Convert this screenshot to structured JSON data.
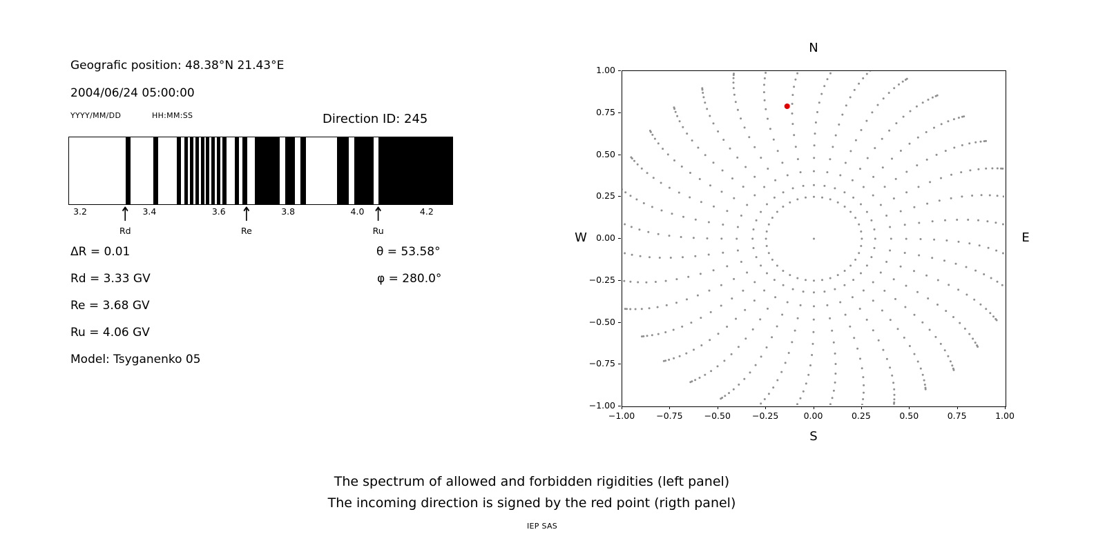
{
  "header": {
    "position_label": "Geografic position: 48.38°N 21.43°E",
    "datetime": "2004/06/24 05:00:00",
    "date_format": "YYYY/MM/DD",
    "time_format": "HH:MM:SS",
    "direction_id": "Direction ID: 245"
  },
  "left_panel": {
    "delta_r": "ΔR = 0.01",
    "theta": "θ = 53.58°",
    "rd": "Rd = 3.33 GV",
    "phi": "φ = 280.0°",
    "re": "Re = 3.68 GV",
    "ru": "Ru = 4.06 GV",
    "model": "Model: Tsyganenko 05"
  },
  "captions": {
    "line1": "The spectrum of allowed and forbidden rigidities (left panel)",
    "line2": "The incoming direction is signed by the red point (rigth panel)",
    "credit": "IEP SAS"
  },
  "chart_data": [
    {
      "type": "bar",
      "xlim": [
        3.166,
        4.272
      ],
      "xticks": [
        3.2,
        3.4,
        3.6,
        3.8,
        4.0,
        4.2
      ],
      "xtick_labels": [
        "3.2",
        "3.4",
        "3.6",
        "3.8",
        "4.0",
        "4.2"
      ],
      "allowed_bands_gv": [
        [
          3.329,
          3.343
        ],
        [
          3.409,
          3.423
        ],
        [
          3.477,
          3.489
        ],
        [
          3.499,
          3.509
        ],
        [
          3.515,
          3.525
        ],
        [
          3.531,
          3.541
        ],
        [
          3.547,
          3.557
        ],
        [
          3.561,
          3.57
        ],
        [
          3.577,
          3.586
        ],
        [
          3.592,
          3.602
        ],
        [
          3.608,
          3.62
        ],
        [
          3.644,
          3.656
        ],
        [
          3.666,
          3.68
        ],
        [
          3.702,
          3.774
        ],
        [
          3.79,
          3.817
        ],
        [
          3.833,
          3.849
        ],
        [
          3.939,
          3.973
        ],
        [
          3.989,
          4.045
        ],
        [
          4.059,
          4.272
        ]
      ],
      "markers": [
        {
          "label": "Rd",
          "value": 3.33
        },
        {
          "label": "Re",
          "value": 3.68
        },
        {
          "label": "Ru",
          "value": 4.06
        }
      ],
      "arrow_glyph": "↑",
      "band_color": "#000000"
    },
    {
      "type": "scatter",
      "xlim": [
        -1,
        1
      ],
      "ylim": [
        -1,
        1
      ],
      "xticks": [
        -1,
        -0.75,
        -0.5,
        -0.25,
        0,
        0.25,
        0.5,
        0.75,
        1
      ],
      "xtick_labels": [
        "−1.00",
        "−0.75",
        "−0.50",
        "−0.25",
        "0.00",
        "0.25",
        "0.50",
        "0.75",
        "1.00"
      ],
      "yticks": [
        1,
        0.75,
        0.5,
        0.25,
        0,
        -0.25,
        -0.5,
        -0.75,
        -1
      ],
      "ytick_labels": [
        "1.00",
        "0.75",
        "0.50",
        "0.25",
        "0.00",
        "−0.25",
        "−0.50",
        "−0.75",
        "−1.00"
      ],
      "compass": {
        "top": "N",
        "bottom": "S",
        "left": "W",
        "right": "E"
      },
      "red_point": {
        "x": -0.14,
        "y": 0.79
      },
      "gray_pattern": {
        "spoke_count": 36,
        "points_per_spoke": 16,
        "r_start": 0.32,
        "r_end": 1.07,
        "tip_cluster_exp": 1.7,
        "curvature_deg": 7,
        "inner_ring_radius": 0.25,
        "inner_ring_count": 36,
        "center_point": true
      },
      "colors": {
        "dot": "#8f8f8f",
        "red": "#e00000"
      },
      "dot_radius": 1.5,
      "red_radius": 4,
      "grid": false
    }
  ]
}
